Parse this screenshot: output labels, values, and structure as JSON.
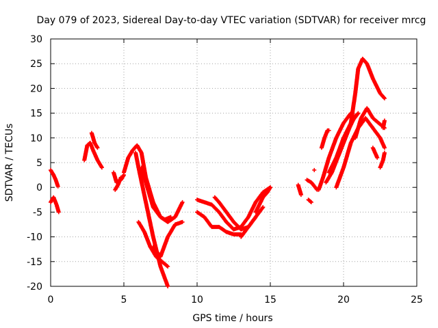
{
  "chart_data": {
    "type": "scatter",
    "title": "Day 079 of 2023, Sidereal Day-to-day VTEC variation (SDTVAR) for receiver mrcg",
    "xlabel": "GPS time / hours",
    "ylabel": "SDTVAR / TECUs",
    "xlim": [
      0,
      25
    ],
    "ylim": [
      -20,
      30
    ],
    "xticks": [
      0,
      5,
      10,
      15,
      20,
      25
    ],
    "yticks": [
      -20,
      -15,
      -10,
      -5,
      0,
      5,
      10,
      15,
      20,
      25,
      30
    ],
    "grid": true,
    "marker": "+",
    "color": "#ff0000",
    "series": [
      {
        "x": [
          0.0,
          0.2,
          0.35,
          0.5
        ],
        "y": [
          3.5,
          2.5,
          1.5,
          0.2
        ]
      },
      {
        "x": [
          0.0,
          0.2,
          0.4,
          0.55
        ],
        "y": [
          -3,
          -2,
          -3.5,
          -5
        ]
      },
      {
        "x": [
          2.3,
          2.5,
          2.7,
          2.9,
          3.2,
          3.5
        ],
        "y": [
          5.5,
          8.5,
          9,
          7.5,
          5.5,
          4
        ]
      },
      {
        "x": [
          2.8,
          3.0,
          3.2
        ],
        "y": [
          11,
          9,
          8
        ]
      },
      {
        "x": [
          4.3,
          4.5,
          4.8,
          5.0
        ],
        "y": [
          3,
          1,
          1.5,
          2.5
        ]
      },
      {
        "x": [
          4.4,
          4.6,
          4.8
        ],
        "y": [
          -0.5,
          0.5,
          2
        ]
      },
      {
        "x": [
          5.0,
          5.3,
          5.6,
          5.9,
          6.2,
          6.5,
          7.0,
          7.5,
          8.0,
          8.5,
          9.0
        ],
        "y": [
          3,
          6,
          7.5,
          8.5,
          7,
          2,
          -3,
          -6,
          -7,
          -6,
          -3
        ]
      },
      {
        "x": [
          5.8,
          6.0,
          6.5,
          7.0,
          7.5,
          8.0
        ],
        "y": [
          7,
          4,
          -3,
          -10,
          -16,
          -20
        ]
      },
      {
        "x": [
          6.2,
          6.6,
          7.0,
          7.5,
          7.8,
          8.2
        ],
        "y": [
          4,
          0,
          -4,
          -6,
          -6.5,
          -6
        ]
      },
      {
        "x": [
          6.0,
          6.4,
          6.8,
          7.2,
          7.6,
          8.0
        ],
        "y": [
          -7,
          -9,
          -12,
          -14,
          -15,
          -16
        ]
      },
      {
        "x": [
          7.0,
          7.5,
          8.0,
          8.5,
          9.0
        ],
        "y": [
          -12,
          -14,
          -10,
          -7.5,
          -7
        ]
      },
      {
        "x": [
          10.0,
          10.5,
          11.0,
          11.5,
          12.0,
          12.5,
          13.0,
          13.5,
          14.0,
          14.5,
          15.0
        ],
        "y": [
          -2.5,
          -3,
          -3.5,
          -5,
          -7,
          -8.5,
          -8,
          -6,
          -3,
          -1,
          0
        ]
      },
      {
        "x": [
          10.0,
          10.5,
          11.0,
          11.5,
          12.0,
          12.5,
          13.0
        ],
        "y": [
          -5,
          -6,
          -8,
          -8,
          -9,
          -9.5,
          -9.5
        ]
      },
      {
        "x": [
          11.2,
          11.5,
          12.0,
          12.5,
          13.0,
          13.5,
          14.0
        ],
        "y": [
          -2,
          -3,
          -5,
          -7,
          -8.5,
          -8,
          -6
        ]
      },
      {
        "x": [
          13.0,
          13.5,
          14.0,
          14.5
        ],
        "y": [
          -10,
          -8,
          -6,
          -4
        ]
      },
      {
        "x": [
          14.0,
          14.5,
          14.8,
          15.0
        ],
        "y": [
          -5,
          -2,
          -1,
          0
        ]
      },
      {
        "x": [
          16.9,
          17.1
        ],
        "y": [
          0.5,
          -1.5
        ]
      },
      {
        "x": [
          17.5,
          17.8,
          18.2
        ],
        "y": [
          1.5,
          1,
          -0.5
        ]
      },
      {
        "x": [
          17.6,
          17.8
        ],
        "y": [
          -2.5,
          -3
        ]
      },
      {
        "x": [
          18.0
        ],
        "y": [
          3.5
        ]
      },
      {
        "x": [
          18.5,
          18.7,
          18.9,
          19.0
        ],
        "y": [
          8,
          10,
          11.5,
          11.5
        ]
      },
      {
        "x": [
          18.3,
          18.6,
          19.0,
          19.5,
          20.0,
          20.5
        ],
        "y": [
          -0.5,
          2,
          6,
          10,
          13,
          15
        ]
      },
      {
        "x": [
          18.8,
          19.2,
          19.6,
          20.0,
          20.4,
          20.8
        ],
        "y": [
          1,
          3,
          6,
          9,
          12,
          14.5
        ]
      },
      {
        "x": [
          19.0,
          19.5,
          20.0,
          20.5,
          21.0
        ],
        "y": [
          3,
          6,
          10,
          13,
          15
        ]
      },
      {
        "x": [
          19.5,
          20.0,
          20.5,
          21.0,
          21.5,
          22.0,
          22.5,
          22.8
        ],
        "y": [
          0,
          4,
          9,
          12,
          14,
          12,
          10,
          8
        ]
      },
      {
        "x": [
          20.5,
          20.8,
          21.0,
          21.3,
          21.6,
          22.0,
          22.5,
          22.8
        ],
        "y": [
          13,
          19,
          24,
          26,
          25,
          22,
          19,
          18
        ]
      },
      {
        "x": [
          20.8,
          21.2,
          21.6,
          22.0,
          22.4,
          22.8
        ],
        "y": [
          10,
          14,
          16,
          14,
          13,
          12
        ]
      },
      {
        "x": [
          22.0,
          22.3
        ],
        "y": [
          8,
          6
        ]
      },
      {
        "x": [
          22.5,
          22.7,
          22.8
        ],
        "y": [
          4,
          5.5,
          7
        ]
      },
      {
        "x": [
          22.7,
          22.8
        ],
        "y": [
          12,
          13.5
        ]
      }
    ]
  }
}
